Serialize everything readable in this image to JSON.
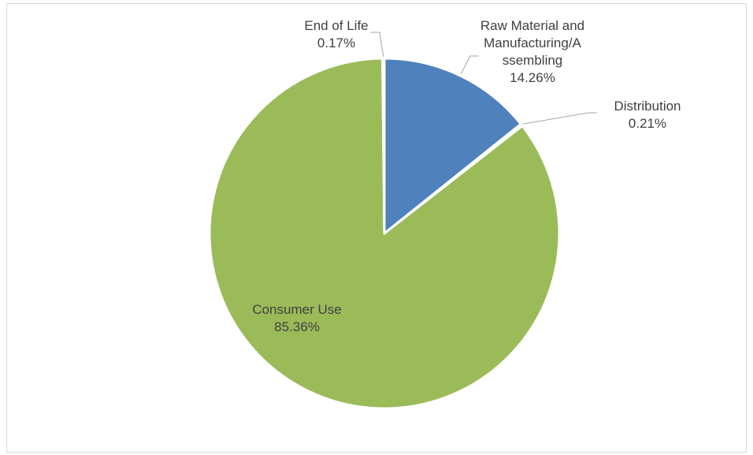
{
  "chart_data": {
    "type": "pie",
    "title": "",
    "start_angle_deg": 0,
    "direction": "clockwise",
    "slices": [
      {
        "key": "raw",
        "label_lines": [
          "Raw Material and",
          "Manufacturing/A",
          "ssembling"
        ],
        "label": "Raw Material and Manufacturing/Assembling",
        "value": 14.26,
        "value_text": "14.26%",
        "color": "#4f81bd"
      },
      {
        "key": "dist",
        "label_lines": [
          "Distribution"
        ],
        "label": "Distribution",
        "value": 0.21,
        "value_text": "0.21%",
        "color": "#c0504d"
      },
      {
        "key": "use",
        "label_lines": [
          "Consumer Use"
        ],
        "label": "Consumer Use",
        "value": 85.36,
        "value_text": "85.36%",
        "color": "#9bbb59"
      },
      {
        "key": "eol",
        "label_lines": [
          "End of Life"
        ],
        "label": "End of Life",
        "value": 0.17,
        "value_text": "0.17%",
        "color": "#8064a2"
      }
    ],
    "legend": "none",
    "data_labels": "category and percentage"
  }
}
